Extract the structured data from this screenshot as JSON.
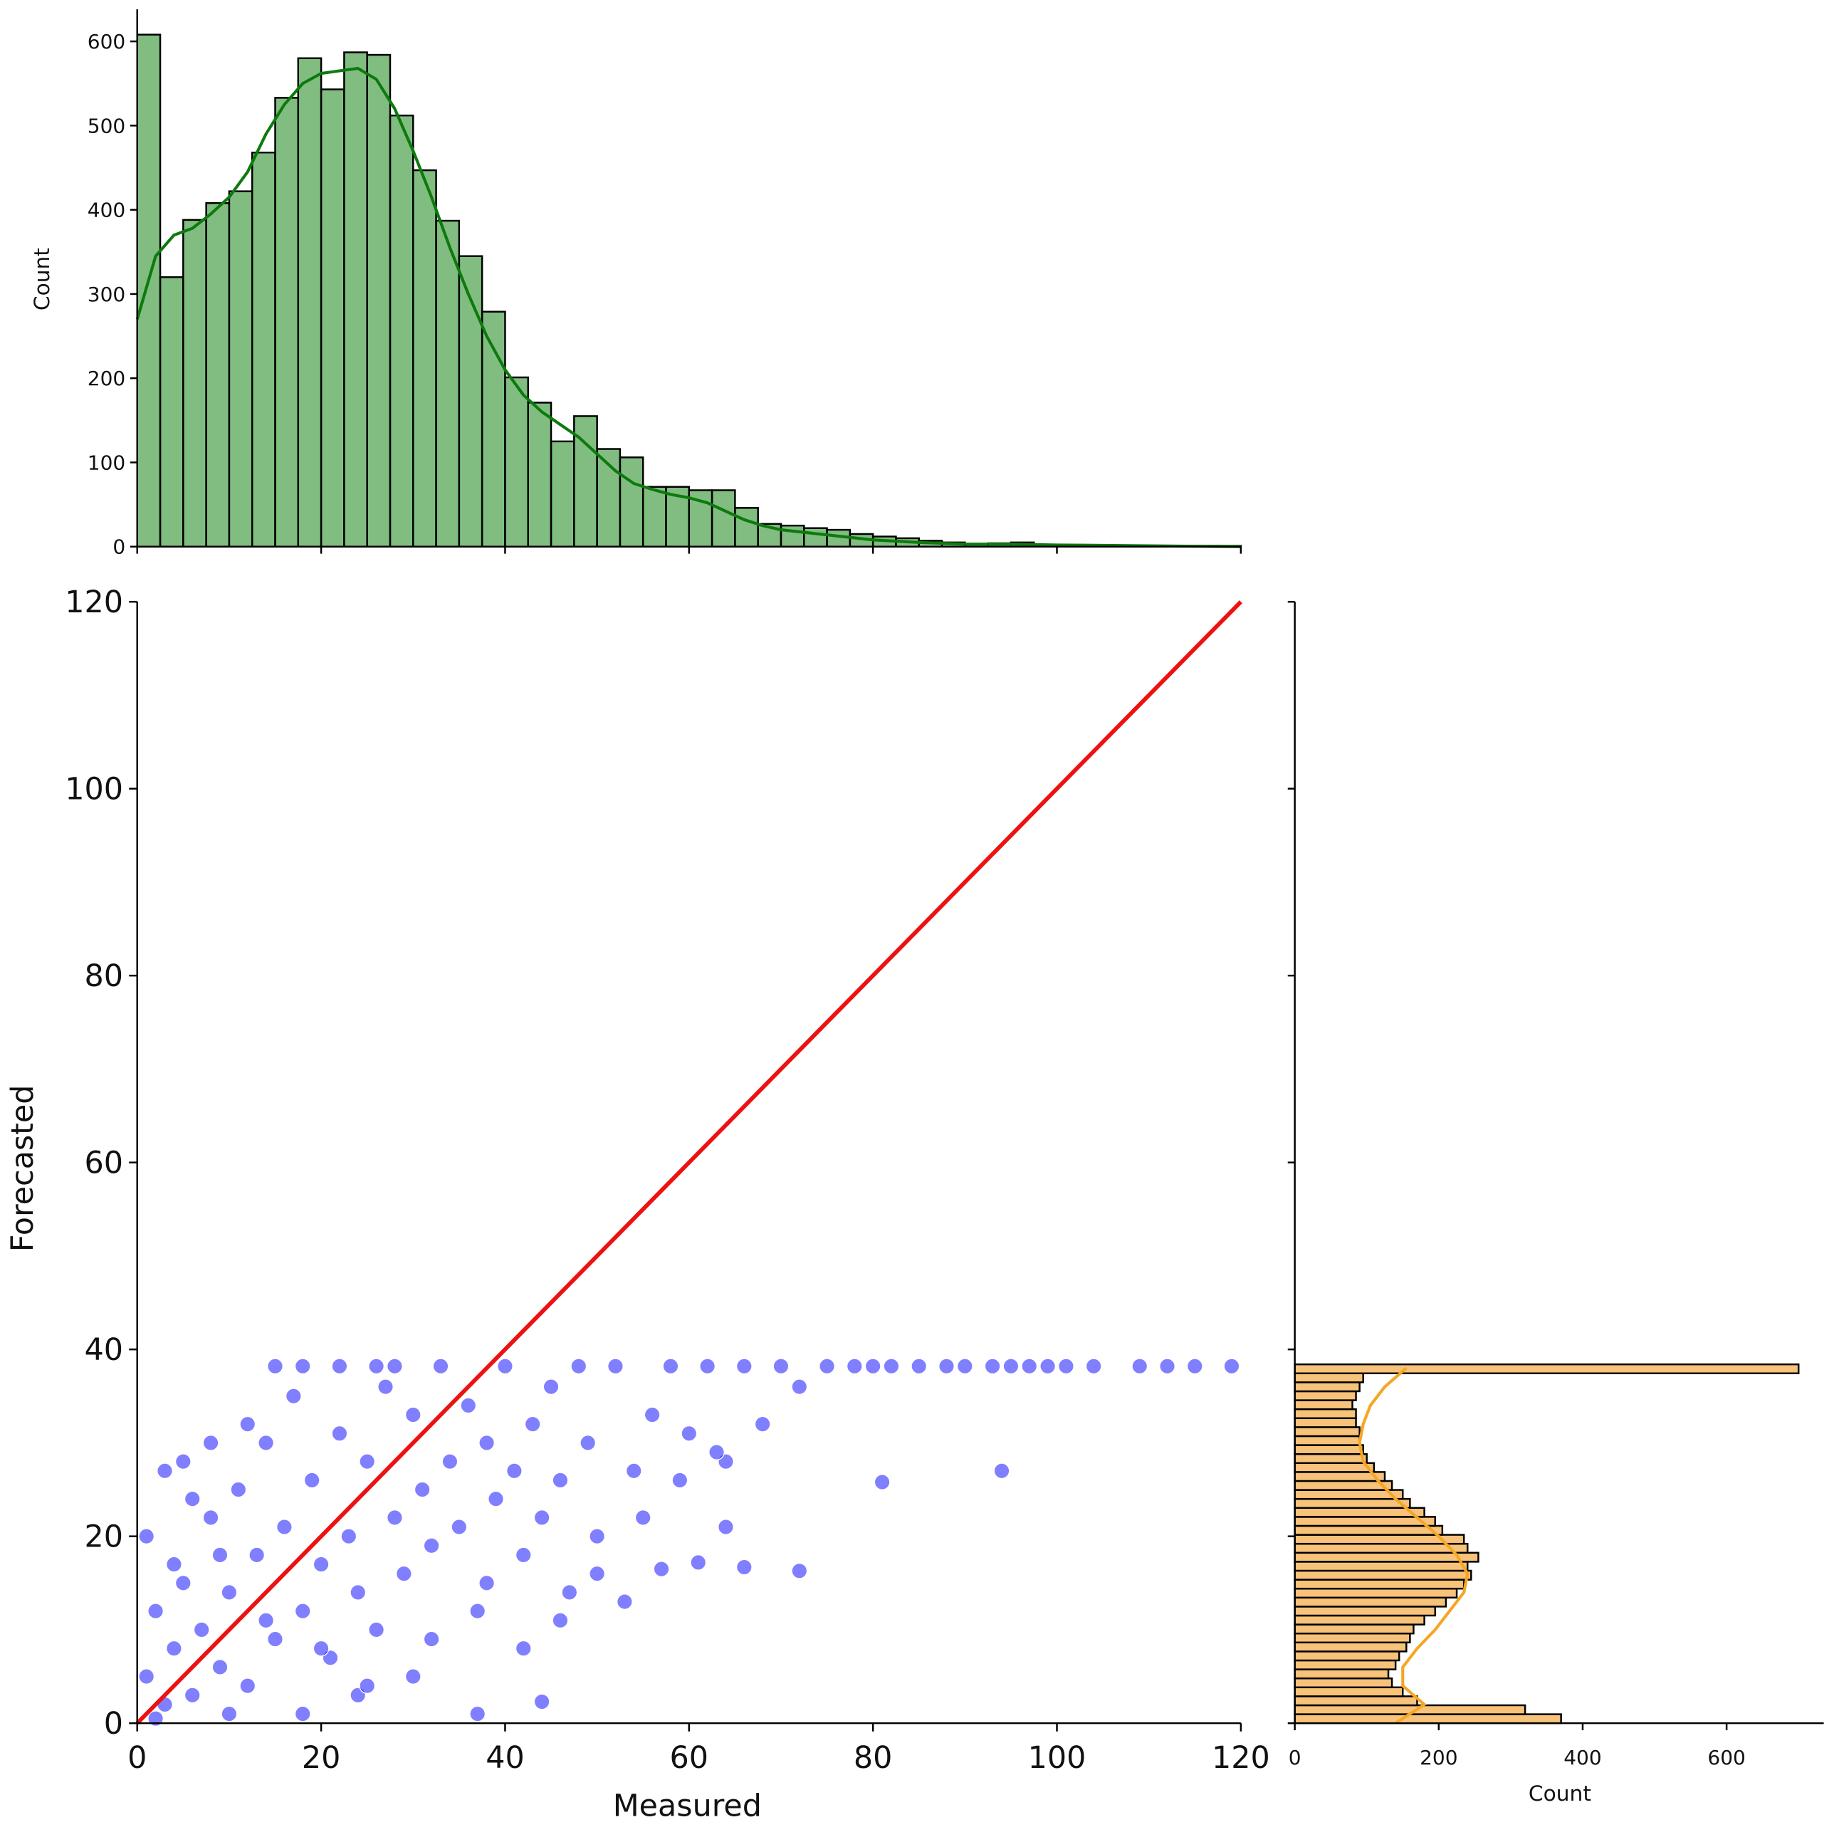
{
  "chart_data": [
    {
      "type": "histogram",
      "orientation": "vertical",
      "ylabel": "Count",
      "color": "#3e9a3e",
      "edgecolor": "#000000",
      "bins": [
        0,
        2.5,
        5,
        7.5,
        10,
        12.5,
        15,
        17.5,
        20,
        22.5,
        25,
        27.5,
        30,
        32.5,
        35,
        37.5,
        40,
        42.5,
        45,
        47.5,
        50,
        52.5,
        55,
        57.5,
        60,
        62.5,
        65,
        67.5,
        70,
        72.5,
        75,
        77.5,
        80,
        82.5,
        85,
        87.5,
        90,
        92.5,
        95,
        97.5,
        100,
        102.5,
        105,
        107.5,
        110,
        112.5,
        115,
        117.5,
        120
      ],
      "values": [
        608,
        320,
        388,
        408,
        422,
        468,
        533,
        580,
        543,
        587,
        584,
        512,
        447,
        387,
        345,
        279,
        201,
        171,
        125,
        155,
        116,
        106,
        71,
        71,
        67,
        67,
        46,
        27,
        25,
        22,
        20,
        15,
        12,
        10,
        7,
        5,
        3,
        4,
        5,
        2,
        2,
        1,
        1,
        1,
        0,
        0,
        1,
        1
      ],
      "kde": {
        "color": "#0d7a0d",
        "x": [
          0,
          2,
          4,
          6,
          8,
          10,
          12,
          14,
          16,
          18,
          20,
          22,
          24,
          26,
          28,
          30,
          32,
          34,
          36,
          38,
          40,
          42,
          44,
          46,
          48,
          50,
          52,
          54,
          56,
          58,
          60,
          62,
          64,
          66,
          68,
          70,
          75,
          80,
          85,
          90,
          95,
          100,
          110,
          120
        ],
        "values": [
          270,
          345,
          370,
          378,
          395,
          415,
          445,
          490,
          525,
          550,
          562,
          565,
          568,
          555,
          520,
          470,
          415,
          355,
          300,
          250,
          210,
          180,
          160,
          145,
          130,
          110,
          90,
          75,
          68,
          62,
          58,
          52,
          42,
          32,
          25,
          20,
          14,
          8,
          5,
          3,
          3,
          2,
          1,
          0
        ]
      },
      "xlim": [
        0,
        120
      ],
      "ylim": [
        0,
        638
      ],
      "yticks": [
        0,
        100,
        200,
        300,
        400,
        500,
        600
      ]
    },
    {
      "type": "scatter",
      "xlabel": "Measured",
      "ylabel": "Forecasted",
      "color": "#0000ff",
      "x": [
        1,
        2,
        3,
        1,
        4,
        5,
        6,
        3,
        7,
        8,
        9,
        10,
        11,
        12,
        13,
        14,
        15,
        16,
        17,
        18,
        19,
        20,
        21,
        22,
        23,
        24,
        25,
        26,
        27,
        28,
        29,
        30,
        31,
        32,
        33,
        34,
        35,
        36,
        37,
        38,
        39,
        40,
        41,
        42,
        43,
        44,
        45,
        46,
        47,
        48,
        49,
        50,
        52,
        54,
        56,
        58,
        60,
        62,
        64,
        66,
        68,
        70,
        72,
        75,
        78,
        80,
        82,
        85,
        88,
        90,
        93,
        95,
        97,
        99,
        101,
        104,
        109,
        112,
        115,
        119,
        81,
        94,
        72,
        66,
        61,
        57,
        64,
        53,
        44,
        37,
        30,
        24,
        18,
        10,
        5,
        8,
        12,
        15,
        18,
        22,
        26,
        28,
        2,
        4,
        6,
        9,
        14,
        20,
        25,
        32,
        38,
        42,
        46,
        50,
        55,
        59,
        63
      ],
      "y": [
        5,
        12,
        2,
        20,
        8,
        15,
        3,
        27,
        10,
        22,
        6,
        14,
        25,
        4,
        18,
        30,
        9,
        21,
        35,
        12,
        26,
        17,
        7,
        31,
        20,
        14,
        28,
        10,
        36,
        22,
        16,
        33,
        25,
        19,
        38.2,
        28,
        21,
        34,
        12,
        30,
        24,
        38.2,
        27,
        18,
        32,
        22,
        36,
        26,
        14,
        38.2,
        30,
        20,
        38.2,
        27,
        33,
        38.2,
        31,
        38.2,
        28,
        38.2,
        32,
        38.2,
        36,
        38.2,
        38.2,
        38.2,
        38.2,
        38.2,
        38.2,
        38.2,
        38.2,
        38.2,
        38.2,
        38.2,
        38.2,
        38.2,
        38.2,
        38.2,
        38.2,
        38.2,
        25.8,
        27,
        16.3,
        16.7,
        17.2,
        16.5,
        21,
        13,
        2.3,
        1,
        5,
        3,
        1,
        1,
        28,
        30,
        32,
        38.2,
        38.2,
        38.2,
        38.2,
        38.2,
        0.5,
        17,
        24,
        18,
        11,
        8,
        4,
        9,
        15,
        8,
        11,
        16,
        22,
        26,
        29
      ],
      "line": {
        "color": "#ee1111",
        "x": [
          0,
          120
        ],
        "y": [
          0,
          120
        ]
      },
      "xlim": [
        0,
        120
      ],
      "ylim": [
        0,
        120
      ],
      "xticks": [
        0,
        20,
        40,
        60,
        80,
        100,
        120
      ],
      "yticks": [
        0,
        20,
        40,
        60,
        80,
        100,
        120
      ]
    },
    {
      "type": "histogram",
      "orientation": "horizontal",
      "xlabel": "Count",
      "color": "#f7c27a",
      "edgecolor": "#000000",
      "bins": [
        0,
        0.96,
        1.92,
        2.88,
        3.84,
        4.8,
        5.76,
        6.72,
        7.68,
        8.64,
        9.6,
        10.56,
        11.52,
        12.48,
        13.44,
        14.4,
        15.36,
        16.32,
        17.28,
        18.24,
        19.2,
        20.16,
        21.12,
        22.08,
        23.04,
        24,
        24.96,
        25.92,
        26.88,
        27.84,
        28.8,
        29.76,
        30.72,
        31.68,
        32.64,
        33.6,
        34.56,
        35.52,
        36.48,
        37.44,
        38.4
      ],
      "values": [
        370,
        320,
        170,
        150,
        135,
        130,
        140,
        145,
        155,
        160,
        165,
        180,
        195,
        210,
        225,
        235,
        245,
        240,
        255,
        240,
        235,
        205,
        195,
        180,
        160,
        150,
        135,
        125,
        110,
        100,
        95,
        90,
        90,
        85,
        85,
        80,
        85,
        90,
        95,
        700
      ],
      "kde": {
        "color": "#f5a623",
        "y": [
          0,
          2,
          4,
          6,
          8,
          10,
          12,
          14,
          16,
          18,
          20,
          22,
          24,
          26,
          28,
          30,
          32,
          34,
          36,
          38
        ],
        "values": [
          140,
          180,
          150,
          150,
          170,
          195,
          215,
          235,
          240,
          225,
          200,
          170,
          140,
          115,
          95,
          90,
          95,
          105,
          125,
          155
        ]
      },
      "xlim": [
        0,
        735
      ],
      "xticks": [
        0,
        200,
        400,
        600
      ]
    }
  ]
}
